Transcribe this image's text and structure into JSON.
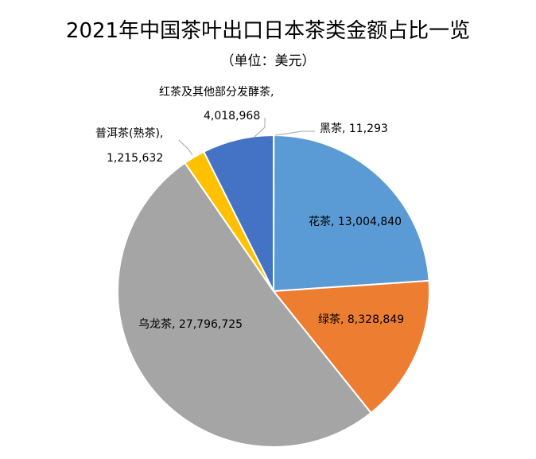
{
  "chart_data": {
    "type": "pie",
    "title": "2021年中国茶叶出口日本茶类金额占比一览",
    "subtitle": "（单位：美元）",
    "slices": [
      {
        "label": "黑茶",
        "value": 11293,
        "color": "#1f4e8c",
        "text": "黑茶, 11,293"
      },
      {
        "label": "花茶",
        "value": 13004840,
        "color": "#5b9bd5",
        "text": "花茶, 13,004,840"
      },
      {
        "label": "绿茶",
        "value": 8328849,
        "color": "#ed7d31",
        "text": "绿茶, 8,328,849"
      },
      {
        "label": "乌龙茶",
        "value": 27796725,
        "color": "#a5a5a5",
        "text": "乌龙茶, 27,796,725"
      },
      {
        "label": "普洱茶(熟茶)",
        "value": 1215632,
        "color": "#ffc000",
        "text_line1": "普洱茶(熟茶),",
        "text_line2": "1,215,632"
      },
      {
        "label": "红茶及其他部分发酵茶",
        "value": 4018968,
        "color": "#4472c4",
        "text_line1": "红茶及其他部分发酵茶,",
        "text_line2": "4,018,968"
      }
    ]
  }
}
